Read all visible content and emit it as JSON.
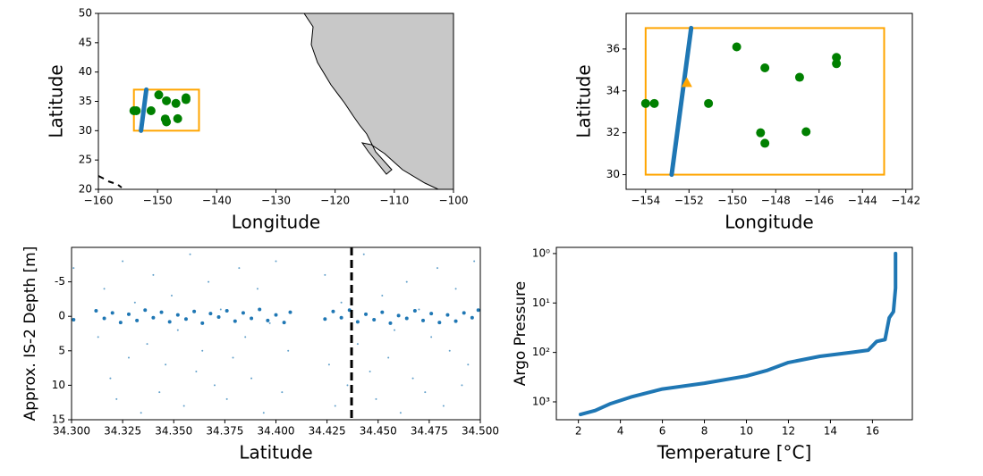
{
  "chart_data": [
    {
      "type": "scatter",
      "xlabel": "Longitude",
      "ylabel": "Latitude",
      "xlim": [
        -160,
        -100
      ],
      "ylim": [
        20,
        50
      ],
      "xticks": [
        {
          "value": -160,
          "label": "−160"
        },
        {
          "value": -150,
          "label": "−150"
        },
        {
          "value": -140,
          "label": "−140"
        },
        {
          "value": -130,
          "label": "−130"
        },
        {
          "value": -120,
          "label": "−120"
        },
        {
          "value": -110,
          "label": "−110"
        },
        {
          "value": -100,
          "label": "−100"
        }
      ],
      "yticks": [
        20,
        25,
        30,
        35,
        40,
        45,
        50
      ],
      "box": {
        "color": "#ffa500",
        "x": [
          -154,
          -143
        ],
        "y": [
          30,
          37
        ]
      },
      "series": [
        {
          "marker": "line",
          "color": "#1f77b4",
          "x": [
            -152.8,
            -151.9
          ],
          "y": [
            30,
            37
          ]
        },
        {
          "marker": "circle",
          "color": "#008000",
          "x": [
            -154,
            -153.6,
            -149.8,
            -148.5,
            -146.9,
            -145.2,
            -145.2,
            -151.1,
            -148.7,
            -148.5,
            -146.6
          ],
          "y": [
            33.4,
            33.4,
            36.1,
            35.1,
            34.65,
            35.6,
            35.3,
            33.4,
            32.0,
            31.5,
            32.05
          ]
        }
      ]
    },
    {
      "type": "scatter",
      "xlabel": "Longitude",
      "ylabel": "Latitude",
      "xlim": [
        -154.9,
        -141.7
      ],
      "ylim": [
        29.3,
        37.7
      ],
      "xticks": [
        {
          "value": -154,
          "label": "−154"
        },
        {
          "value": -152,
          "label": "−152"
        },
        {
          "value": -150,
          "label": "−150"
        },
        {
          "value": -148,
          "label": "−148"
        },
        {
          "value": -146,
          "label": "−146"
        },
        {
          "value": -144,
          "label": "−144"
        },
        {
          "value": -142,
          "label": "−142"
        }
      ],
      "yticks": [
        30,
        32,
        34,
        36
      ],
      "box": {
        "color": "#ffa500",
        "x": [
          -154,
          -143
        ],
        "y": [
          30,
          37
        ]
      },
      "series": [
        {
          "marker": "line",
          "color": "#1f77b4",
          "x": [
            -152.8,
            -151.9
          ],
          "y": [
            30,
            37
          ]
        },
        {
          "marker": "circle",
          "color": "#008000",
          "x": [
            -154,
            -153.6,
            -149.8,
            -148.5,
            -146.9,
            -145.2,
            -145.2,
            -151.1,
            -148.7,
            -148.5,
            -146.6
          ],
          "y": [
            33.4,
            33.4,
            36.1,
            35.1,
            34.65,
            35.6,
            35.3,
            33.4,
            32.0,
            31.5,
            32.05
          ]
        },
        {
          "marker": "triangle",
          "color": "#ffa500",
          "x": [
            -152.1
          ],
          "y": [
            34.4
          ]
        }
      ]
    },
    {
      "type": "scatter",
      "xlabel": "Latitude",
      "ylabel": "Approx. IS-2 Depth [m]",
      "xlim": [
        34.3,
        34.5
      ],
      "ylim": [
        15,
        -10
      ],
      "xticks": [
        {
          "value": 34.3,
          "label": "34.300"
        },
        {
          "value": 34.325,
          "label": "34.325"
        },
        {
          "value": 34.35,
          "label": "34.350"
        },
        {
          "value": 34.375,
          "label": "34.375"
        },
        {
          "value": 34.4,
          "label": "34.400"
        },
        {
          "value": 34.425,
          "label": "34.425"
        },
        {
          "value": 34.45,
          "label": "34.450"
        },
        {
          "value": 34.475,
          "label": "34.475"
        },
        {
          "value": 34.5,
          "label": "34.500"
        }
      ],
      "yticks": [
        -5,
        0,
        5,
        10,
        15
      ],
      "vline": {
        "x": 34.437,
        "color": "#000000"
      },
      "series": [
        {
          "marker": "dot",
          "color": "#1f77b4",
          "x": [
            34.301,
            34.313,
            34.316,
            34.319,
            34.322,
            34.325,
            34.328,
            34.331,
            34.334,
            34.337,
            34.34,
            34.343,
            34.346,
            34.349,
            34.352,
            34.355,
            34.358,
            34.361,
            34.364,
            34.367,
            34.37,
            34.373,
            34.376,
            34.379,
            34.382,
            34.385,
            34.388,
            34.391,
            34.394,
            34.397,
            34.4,
            34.403,
            34.406,
            34.424,
            34.426,
            34.429,
            34.432,
            34.435,
            34.44,
            34.443,
            34.446,
            34.449,
            34.452,
            34.455,
            34.458,
            34.461,
            34.464,
            34.467,
            34.47,
            34.473,
            34.476,
            34.479,
            34.482,
            34.485,
            34.488,
            34.491,
            34.494,
            34.497
          ],
          "y": [
            -7,
            3,
            -4,
            9,
            12,
            -8,
            6,
            -2,
            14,
            4,
            -6,
            11,
            7,
            -3,
            2,
            13,
            -9,
            8,
            5,
            -5,
            10,
            -1,
            12,
            6,
            -7,
            3,
            9,
            -4,
            14,
            1,
            -8,
            11,
            5,
            -6,
            7,
            13,
            -2,
            10,
            4,
            -9,
            8,
            12,
            -3,
            6,
            2,
            14,
            -5,
            9,
            -1,
            11,
            3,
            -7,
            13,
            5,
            -4,
            10,
            7,
            -8
          ]
        },
        {
          "marker": "circle-small",
          "color": "#1f77b4",
          "x": [
            34.301,
            34.312,
            34.316,
            34.32,
            34.324,
            34.328,
            34.332,
            34.336,
            34.34,
            34.344,
            34.348,
            34.352,
            34.356,
            34.36,
            34.364,
            34.368,
            34.372,
            34.376,
            34.38,
            34.384,
            34.388,
            34.392,
            34.396,
            34.4,
            34.404,
            34.407,
            34.424,
            34.428,
            34.432,
            34.436,
            34.44,
            34.444,
            34.448,
            34.452,
            34.456,
            34.46,
            34.464,
            34.468,
            34.472,
            34.476,
            34.48,
            34.484,
            34.488,
            34.492,
            34.496,
            34.499
          ],
          "y": [
            0.5,
            -0.8,
            0.3,
            -0.5,
            0.9,
            -0.3,
            0.6,
            -0.9,
            0.2,
            -0.6,
            0.8,
            -0.2,
            0.4,
            -0.7,
            1,
            -0.4,
            0.1,
            -0.8,
            0.7,
            -0.5,
            0.3,
            -1,
            0.6,
            -0.2,
            0.9,
            -0.6,
            0.4,
            -0.7,
            0.2,
            -0.9,
            0.8,
            -0.3,
            0.5,
            -0.6,
            1,
            -0.1,
            0.3,
            -0.8,
            0.6,
            -0.4,
            0.9,
            -0.2,
            0.7,
            -0.5,
            0.2,
            -0.9
          ]
        }
      ]
    },
    {
      "type": "line",
      "xlabel": "Temperature [°C]",
      "ylabel": "Argo Pressure",
      "xlim": [
        0.95,
        17.9
      ],
      "ylim": [
        2300,
        0.75
      ],
      "yscale": "log",
      "xticks": [
        2,
        4,
        6,
        8,
        10,
        12,
        14,
        16
      ],
      "yticks": [
        {
          "value": 1,
          "label": "10⁰"
        },
        {
          "value": 10,
          "label": "10¹"
        },
        {
          "value": 100,
          "label": "10²"
        },
        {
          "value": 1000,
          "label": "10³"
        }
      ],
      "series": [
        {
          "color": "#1f77b4",
          "x": [
            2.1,
            2.8,
            3.5,
            4.5,
            6,
            8,
            10,
            11,
            12,
            13.5,
            15,
            15.8,
            16.2,
            16.6,
            16.8,
            17.0,
            17.1,
            17.1
          ],
          "y": [
            1800,
            1500,
            1100,
            800,
            550,
            420,
            300,
            230,
            160,
            120,
            100,
            90,
            60,
            55,
            20,
            15,
            5,
            1
          ]
        }
      ]
    }
  ]
}
